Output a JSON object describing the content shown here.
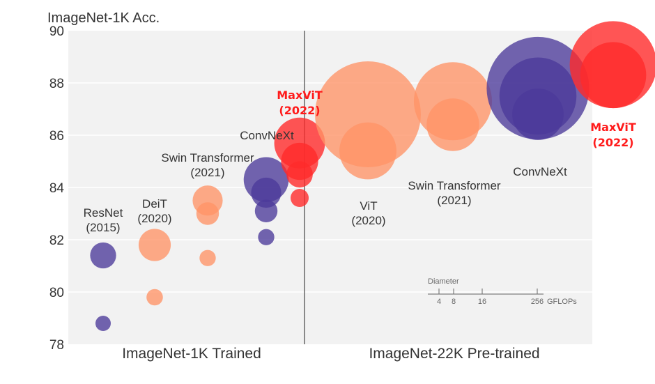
{
  "chart_data": {
    "type": "scatter",
    "ylabel": "ImageNet-1K Acc.",
    "ylim": [
      78,
      90
    ],
    "yticks": [
      "78",
      "80",
      "82",
      "84",
      "86",
      "88",
      "90"
    ],
    "panels": [
      "ImageNet-1K Trained",
      "ImageNet-22K Pre-trained"
    ],
    "grid": true,
    "colors": {
      "purple": "#4b3a9a",
      "orange": "#ff9466",
      "red": "#ff2a2a",
      "grid": "#ffffff",
      "bg": "#f2f2f2"
    },
    "series": [
      {
        "panel": "ImageNet-1K Trained",
        "label": "ResNet (2015)",
        "color": "#4b3a9a",
        "points": [
          {
            "acc": 78.8,
            "gflops": 4
          },
          {
            "acc": 81.4,
            "gflops": 11.5
          }
        ]
      },
      {
        "panel": "ImageNet-1K Trained",
        "label": "DeiT (2020)",
        "color": "#ff9466",
        "points": [
          {
            "acc": 79.8,
            "gflops": 4.6
          },
          {
            "acc": 81.8,
            "gflops": 17.6
          }
        ]
      },
      {
        "panel": "ImageNet-1K Trained",
        "label": "Swin Transformer (2021)",
        "color": "#ff9466",
        "points": [
          {
            "acc": 81.3,
            "gflops": 4.5
          },
          {
            "acc": 83.0,
            "gflops": 8.7
          },
          {
            "acc": 83.5,
            "gflops": 15.4
          }
        ]
      },
      {
        "panel": "ImageNet-1K Trained",
        "label": "ConvNeXt",
        "color": "#4b3a9a",
        "points": [
          {
            "acc": 82.1,
            "gflops": 4.5
          },
          {
            "acc": 83.1,
            "gflops": 8.7
          },
          {
            "acc": 83.8,
            "gflops": 15.4
          },
          {
            "acc": 84.3,
            "gflops": 34.4
          }
        ]
      },
      {
        "panel": "ImageNet-1K Trained",
        "label": "MaxViT (2022)",
        "color": "#ff2a2a",
        "highlight": true,
        "points": [
          {
            "acc": 83.6,
            "gflops": 5.6
          },
          {
            "acc": 84.5,
            "gflops": 11.7
          },
          {
            "acc": 85.0,
            "gflops": 23.4
          },
          {
            "acc": 85.7,
            "gflops": 43.9
          }
        ]
      },
      {
        "panel": "ImageNet-22K Pre-trained",
        "label": "ViT (2020)",
        "color": "#ff9466",
        "points": [
          {
            "acc": 85.4,
            "gflops": 55.4
          },
          {
            "acc": 86.8,
            "gflops": 190.7
          }
        ]
      },
      {
        "panel": "ImageNet-22K Pre-trained",
        "label": "Swin Transformer (2021)",
        "color": "#ff9466",
        "points": [
          {
            "acc": 86.4,
            "gflops": 47.0
          },
          {
            "acc": 87.3,
            "gflops": 103.9
          }
        ]
      },
      {
        "panel": "ImageNet-22K Pre-trained",
        "label": "ConvNeXt",
        "color": "#4b3a9a",
        "points": [
          {
            "acc": 86.8,
            "gflops": 45.1
          },
          {
            "acc": 87.5,
            "gflops": 101.0
          },
          {
            "acc": 87.8,
            "gflops": 179.0
          }
        ]
      },
      {
        "panel": "ImageNet-22K Pre-trained",
        "label": "MaxViT (2022)",
        "color": "#ff2a2a",
        "highlight": true,
        "points": [
          {
            "acc": 88.3,
            "gflops": 74.2
          },
          {
            "acc": 88.7,
            "gflops": 128.7
          }
        ]
      }
    ],
    "size_legend": {
      "title": "Diameter",
      "ticks": [
        "4",
        "8",
        "16",
        "256"
      ],
      "unit": "GFLOPs"
    }
  }
}
